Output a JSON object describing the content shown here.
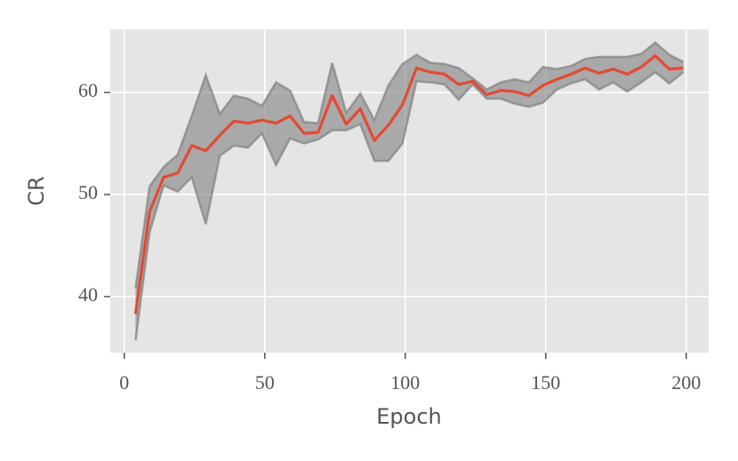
{
  "chart_data": {
    "type": "line",
    "xlabel": "Epoch",
    "ylabel": "CR",
    "x": [
      4,
      9,
      14,
      19,
      24,
      29,
      34,
      39,
      44,
      49,
      54,
      59,
      64,
      69,
      74,
      79,
      84,
      89,
      94,
      99,
      104,
      109,
      114,
      119,
      124,
      129,
      134,
      139,
      144,
      149,
      154,
      159,
      164,
      169,
      174,
      179,
      184,
      189,
      194,
      199
    ],
    "series": [
      {
        "color": "#e24a33",
        "values": [
          38.3,
          48.3,
          51.7,
          52.1,
          54.8,
          54.3,
          55.8,
          57.2,
          57.0,
          57.3,
          57.0,
          57.7,
          56.0,
          56.1,
          59.7,
          56.9,
          58.4,
          55.3,
          56.8,
          58.8,
          62.4,
          62.0,
          61.8,
          60.8,
          61.1,
          59.8,
          60.2,
          60.1,
          59.7,
          60.7,
          61.3,
          61.8,
          62.4,
          61.9,
          62.3,
          61.8,
          62.5,
          63.6,
          62.3,
          62.4
        ]
      }
    ],
    "band": {
      "color": "#808080",
      "high": [
        40.8,
        50.8,
        52.7,
        53.9,
        57.7,
        61.7,
        57.9,
        59.7,
        59.4,
        58.7,
        61.0,
        60.2,
        57.1,
        57.0,
        62.9,
        58.0,
        59.9,
        57.3,
        60.7,
        62.8,
        63.7,
        62.9,
        62.8,
        62.4,
        61.4,
        60.3,
        61.0,
        61.3,
        61.0,
        62.5,
        62.3,
        62.6,
        63.3,
        63.5,
        63.5,
        63.5,
        63.8,
        64.9,
        63.7,
        63.0
      ],
      "low": [
        35.7,
        46.3,
        50.9,
        50.3,
        51.7,
        47.1,
        53.8,
        54.8,
        54.6,
        56.0,
        52.9,
        55.5,
        55.0,
        55.4,
        56.3,
        56.3,
        56.9,
        53.3,
        53.3,
        55.0,
        61.1,
        61.0,
        60.8,
        59.3,
        60.8,
        59.4,
        59.4,
        58.9,
        58.6,
        59.0,
        60.3,
        60.9,
        61.3,
        60.3,
        61.0,
        60.1,
        61.0,
        62.0,
        60.9,
        62.0
      ]
    },
    "xlim": [
      -5,
      208
    ],
    "ylim": [
      34.5,
      66.2
    ],
    "xticks": [
      0,
      50,
      100,
      150,
      200
    ],
    "yticks": [
      40,
      50,
      60
    ],
    "grid": true
  }
}
